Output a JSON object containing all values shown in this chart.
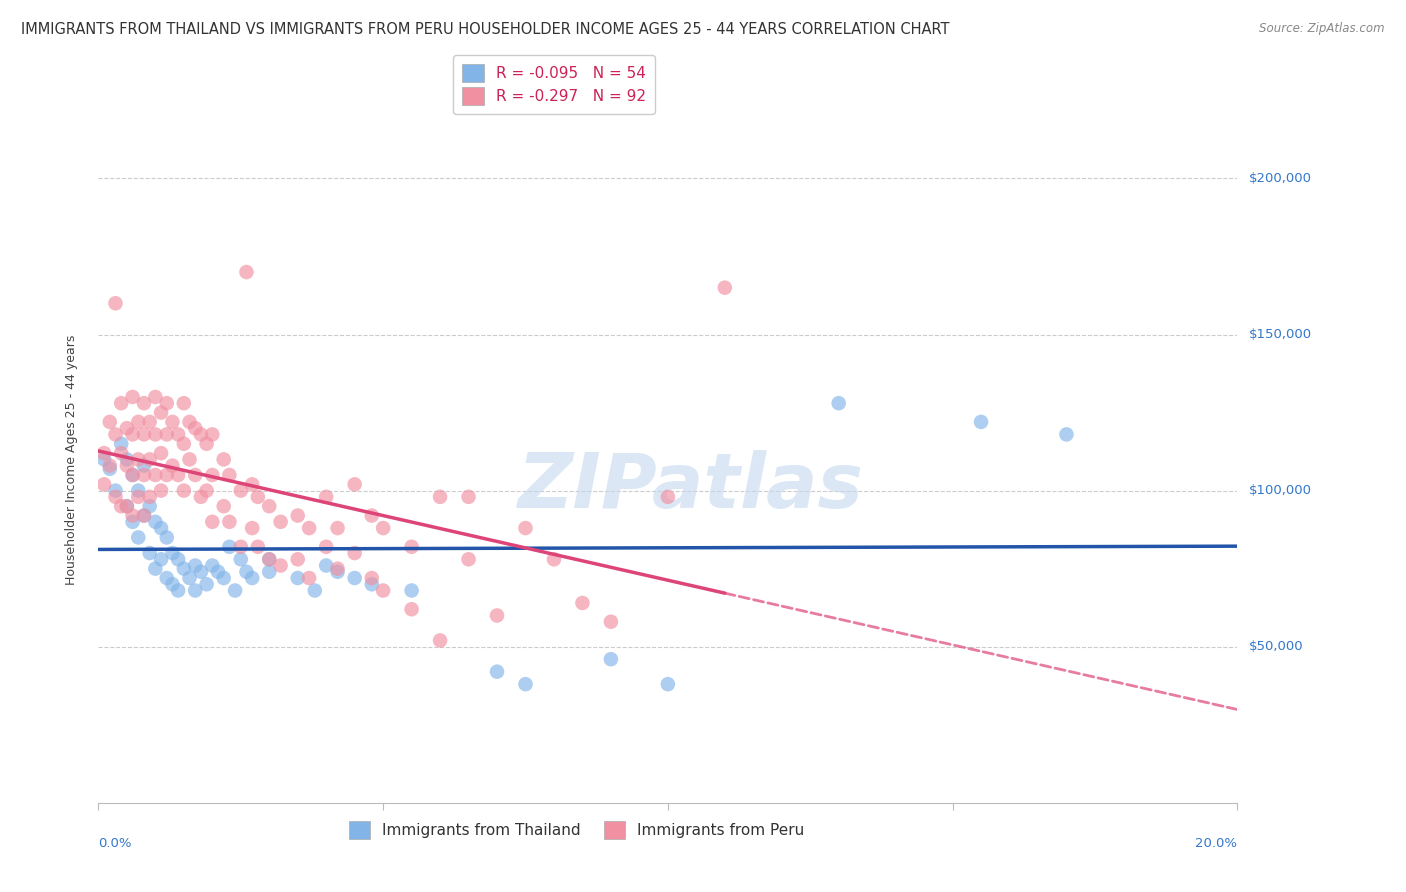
{
  "title": "IMMIGRANTS FROM THAILAND VS IMMIGRANTS FROM PERU HOUSEHOLDER INCOME AGES 25 - 44 YEARS CORRELATION CHART",
  "source": "Source: ZipAtlas.com",
  "ylabel": "Householder Income Ages 25 - 44 years",
  "xlim": [
    0.0,
    0.2
  ],
  "ylim": [
    0,
    220000
  ],
  "yticks": [
    50000,
    100000,
    150000,
    200000
  ],
  "ytick_labels": [
    "$50,000",
    "$100,000",
    "$150,000",
    "$200,000"
  ],
  "grid_color": "#cccccc",
  "background_color": "#ffffff",
  "watermark_text": "ZIPatlas",
  "thailand_color": "#82b4e8",
  "thailand_line_color": "#2255aa",
  "peru_color": "#f090a0",
  "peru_line_color": "#dd4477",
  "title_fontsize": 10.5,
  "axis_label_fontsize": 9,
  "tick_fontsize": 9.5,
  "legend_fontsize": 11,
  "watermark_fontsize": 55,
  "source_fontsize": 8.5,
  "legend_R_color": "#cc2255",
  "legend_N_color": "#2255cc",
  "ytick_color": "#3377cc",
  "thailand_points": [
    [
      0.001,
      110000
    ],
    [
      0.002,
      107000
    ],
    [
      0.003,
      100000
    ],
    [
      0.004,
      115000
    ],
    [
      0.005,
      95000
    ],
    [
      0.005,
      110000
    ],
    [
      0.006,
      105000
    ],
    [
      0.006,
      90000
    ],
    [
      0.007,
      100000
    ],
    [
      0.007,
      85000
    ],
    [
      0.008,
      108000
    ],
    [
      0.008,
      92000
    ],
    [
      0.009,
      80000
    ],
    [
      0.009,
      95000
    ],
    [
      0.01,
      75000
    ],
    [
      0.01,
      90000
    ],
    [
      0.011,
      78000
    ],
    [
      0.011,
      88000
    ],
    [
      0.012,
      72000
    ],
    [
      0.012,
      85000
    ],
    [
      0.013,
      80000
    ],
    [
      0.013,
      70000
    ],
    [
      0.014,
      78000
    ],
    [
      0.014,
      68000
    ],
    [
      0.015,
      75000
    ],
    [
      0.016,
      72000
    ],
    [
      0.017,
      76000
    ],
    [
      0.017,
      68000
    ],
    [
      0.018,
      74000
    ],
    [
      0.019,
      70000
    ],
    [
      0.02,
      76000
    ],
    [
      0.021,
      74000
    ],
    [
      0.022,
      72000
    ],
    [
      0.023,
      82000
    ],
    [
      0.024,
      68000
    ],
    [
      0.025,
      78000
    ],
    [
      0.026,
      74000
    ],
    [
      0.027,
      72000
    ],
    [
      0.03,
      78000
    ],
    [
      0.03,
      74000
    ],
    [
      0.035,
      72000
    ],
    [
      0.038,
      68000
    ],
    [
      0.04,
      76000
    ],
    [
      0.042,
      74000
    ],
    [
      0.045,
      72000
    ],
    [
      0.048,
      70000
    ],
    [
      0.055,
      68000
    ],
    [
      0.07,
      42000
    ],
    [
      0.075,
      38000
    ],
    [
      0.09,
      46000
    ],
    [
      0.1,
      38000
    ],
    [
      0.13,
      128000
    ],
    [
      0.155,
      122000
    ],
    [
      0.17,
      118000
    ]
  ],
  "peru_points": [
    [
      0.001,
      112000
    ],
    [
      0.001,
      102000
    ],
    [
      0.002,
      122000
    ],
    [
      0.002,
      108000
    ],
    [
      0.003,
      118000
    ],
    [
      0.003,
      98000
    ],
    [
      0.003,
      160000
    ],
    [
      0.004,
      128000
    ],
    [
      0.004,
      112000
    ],
    [
      0.004,
      95000
    ],
    [
      0.005,
      120000
    ],
    [
      0.005,
      108000
    ],
    [
      0.005,
      95000
    ],
    [
      0.006,
      130000
    ],
    [
      0.006,
      118000
    ],
    [
      0.006,
      105000
    ],
    [
      0.006,
      92000
    ],
    [
      0.007,
      122000
    ],
    [
      0.007,
      110000
    ],
    [
      0.007,
      98000
    ],
    [
      0.008,
      128000
    ],
    [
      0.008,
      118000
    ],
    [
      0.008,
      105000
    ],
    [
      0.008,
      92000
    ],
    [
      0.009,
      122000
    ],
    [
      0.009,
      110000
    ],
    [
      0.009,
      98000
    ],
    [
      0.01,
      130000
    ],
    [
      0.01,
      118000
    ],
    [
      0.01,
      105000
    ],
    [
      0.011,
      125000
    ],
    [
      0.011,
      112000
    ],
    [
      0.011,
      100000
    ],
    [
      0.012,
      128000
    ],
    [
      0.012,
      118000
    ],
    [
      0.012,
      105000
    ],
    [
      0.013,
      122000
    ],
    [
      0.013,
      108000
    ],
    [
      0.014,
      118000
    ],
    [
      0.014,
      105000
    ],
    [
      0.015,
      128000
    ],
    [
      0.015,
      115000
    ],
    [
      0.015,
      100000
    ],
    [
      0.016,
      122000
    ],
    [
      0.016,
      110000
    ],
    [
      0.017,
      120000
    ],
    [
      0.017,
      105000
    ],
    [
      0.018,
      118000
    ],
    [
      0.018,
      98000
    ],
    [
      0.019,
      115000
    ],
    [
      0.019,
      100000
    ],
    [
      0.02,
      118000
    ],
    [
      0.02,
      105000
    ],
    [
      0.02,
      90000
    ],
    [
      0.022,
      110000
    ],
    [
      0.022,
      95000
    ],
    [
      0.023,
      105000
    ],
    [
      0.023,
      90000
    ],
    [
      0.025,
      100000
    ],
    [
      0.025,
      82000
    ],
    [
      0.026,
      170000
    ],
    [
      0.027,
      102000
    ],
    [
      0.027,
      88000
    ],
    [
      0.028,
      98000
    ],
    [
      0.028,
      82000
    ],
    [
      0.03,
      95000
    ],
    [
      0.03,
      78000
    ],
    [
      0.032,
      90000
    ],
    [
      0.032,
      76000
    ],
    [
      0.035,
      92000
    ],
    [
      0.035,
      78000
    ],
    [
      0.037,
      88000
    ],
    [
      0.037,
      72000
    ],
    [
      0.04,
      98000
    ],
    [
      0.04,
      82000
    ],
    [
      0.042,
      88000
    ],
    [
      0.042,
      75000
    ],
    [
      0.045,
      102000
    ],
    [
      0.045,
      80000
    ],
    [
      0.048,
      92000
    ],
    [
      0.048,
      72000
    ],
    [
      0.05,
      88000
    ],
    [
      0.05,
      68000
    ],
    [
      0.055,
      82000
    ],
    [
      0.055,
      62000
    ],
    [
      0.06,
      98000
    ],
    [
      0.06,
      52000
    ],
    [
      0.065,
      98000
    ],
    [
      0.065,
      78000
    ],
    [
      0.07,
      60000
    ],
    [
      0.075,
      88000
    ],
    [
      0.08,
      78000
    ],
    [
      0.085,
      64000
    ],
    [
      0.09,
      58000
    ],
    [
      0.1,
      98000
    ],
    [
      0.11,
      165000
    ]
  ]
}
